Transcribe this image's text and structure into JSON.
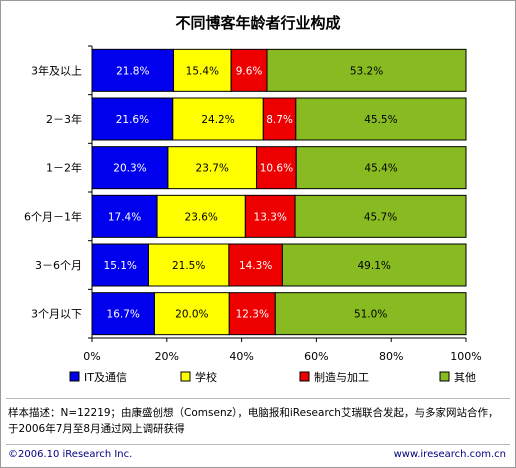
{
  "chart_data": {
    "type": "bar",
    "orientation": "horizontal",
    "stacked": "percent",
    "title": "不同博客年龄者行业构成",
    "categories": [
      "3年及以上",
      "2－3年",
      "1－2年",
      "6个月－1年",
      "3－6个月",
      "3个月以下"
    ],
    "series": [
      {
        "name": "IT及通信",
        "color": "#0000ee",
        "values": [
          21.8,
          21.6,
          20.3,
          17.4,
          15.1,
          16.7
        ],
        "labels": [
          "21.8%",
          "21.6%",
          "20.3%",
          "17.4%",
          "15.1%",
          "16.7%"
        ]
      },
      {
        "name": "学校",
        "color": "#ffff00",
        "values": [
          15.4,
          24.2,
          23.7,
          23.6,
          21.5,
          20.0
        ],
        "labels": [
          "15.4%",
          "24.2%",
          "23.7%",
          "23.6%",
          "21.5%",
          "20.0%"
        ]
      },
      {
        "name": "制造与加工",
        "color": "#ee0000",
        "values": [
          9.6,
          8.7,
          10.6,
          13.3,
          14.3,
          12.3
        ],
        "labels": [
          "9.6%",
          "8.7%",
          "10.6%",
          "13.3%",
          "14.3%",
          "12.3%"
        ]
      },
      {
        "name": "其他",
        "color": "#88bb22",
        "values": [
          53.2,
          45.5,
          45.4,
          45.7,
          49.1,
          51.0
        ],
        "labels": [
          "53.2%",
          "45.5%",
          "45.4%",
          "45.7%",
          "49.1%",
          "51.0%"
        ]
      }
    ],
    "xlim": [
      0,
      100
    ],
    "xticks": [
      "0%",
      "20%",
      "40%",
      "60%",
      "80%",
      "100%"
    ],
    "grid": false,
    "legend_position": "bottom"
  },
  "note": "样本描述：N=12219；由康盛创想（Comsenz），电脑报和iResearch艾瑞联合发起，与多家网站合作，于2006年7月至8月通过网上调研获得",
  "footer": {
    "copyright": "©2006.10 iResearch Inc.",
    "url": "www.iresearch.com.cn"
  }
}
